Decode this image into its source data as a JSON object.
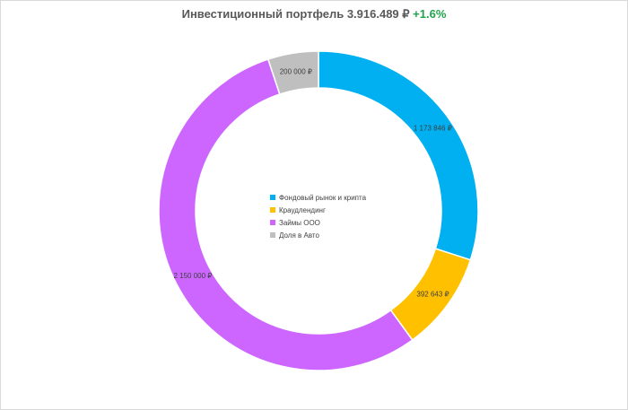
{
  "title": {
    "main": "Инвестиционный портфель 3.916.489 ₽",
    "change": "+1.6%"
  },
  "chart_data": {
    "type": "pie",
    "variant": "doughnut",
    "categories": [
      "Фондовый рынок и крипта",
      "Краудлендинг",
      "Займы ООО",
      "Доля в Авто"
    ],
    "values": [
      1173846,
      392643,
      2150000,
      200000
    ],
    "value_labels": [
      "1 173 846 ₽",
      "392 643 ₽",
      "2 150 000 ₽",
      "200 000 ₽"
    ],
    "colors": [
      "#00b0f0",
      "#ffc000",
      "#cc66ff",
      "#bfbfbf"
    ],
    "legend_position": "center",
    "start_angle_deg": 0,
    "direction": "clockwise"
  }
}
